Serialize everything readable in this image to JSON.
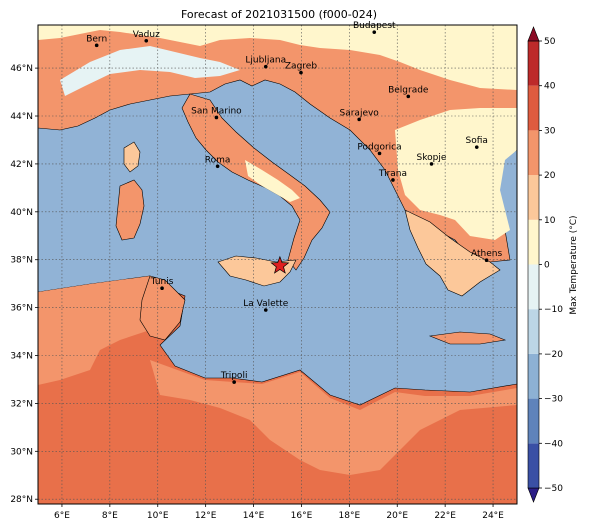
{
  "title": "Forecast of 2021031500 (f000-024)",
  "colorbar": {
    "label": "Max Temperature (°C)",
    "ticks": [
      "50",
      "40",
      "30",
      "20",
      "10",
      "0",
      "−10",
      "−20",
      "−30",
      "−40",
      "−50"
    ],
    "colors": [
      "#2b1d86",
      "#3a50a5",
      "#5f83bb",
      "#8db1d4",
      "#bcd6e6",
      "#e6f3f4",
      "#fff6cc",
      "#fcc89a",
      "#f3956b",
      "#df5b3f",
      "#bd2a2a",
      "#8b0a24"
    ]
  },
  "map": {
    "lon_ticks": [
      "6°E",
      "8°E",
      "10°E",
      "12°E",
      "14°E",
      "16°E",
      "18°E",
      "20°E",
      "22°E",
      "24°E"
    ],
    "lat_ticks": [
      "46°N",
      "44°N",
      "42°N",
      "40°N",
      "38°N",
      "36°N",
      "34°N",
      "32°N",
      "30°N",
      "28°N"
    ],
    "colors": {
      "sea": "#91b3d6",
      "land_warm": "#fcc89a",
      "land_hot": "#f3956b",
      "land_hotter": "#e8704a",
      "land_mild": "#fff6cc",
      "land_cool": "#e6f3f4",
      "marker": "#e02020"
    },
    "cities": [
      {
        "name": "Bern",
        "lon": 7.45,
        "lat": 46.95
      },
      {
        "name": "Vaduz",
        "lon": 9.52,
        "lat": 47.14
      },
      {
        "name": "Budapest",
        "lon": 19.04,
        "lat": 47.5
      },
      {
        "name": "Ljubljana",
        "lon": 14.51,
        "lat": 46.06
      },
      {
        "name": "Zagreb",
        "lon": 15.98,
        "lat": 45.81
      },
      {
        "name": "San Marino",
        "lon": 12.45,
        "lat": 43.94
      },
      {
        "name": "Belgrade",
        "lon": 20.46,
        "lat": 44.82
      },
      {
        "name": "Sarajevo",
        "lon": 18.41,
        "lat": 43.86
      },
      {
        "name": "Sofia",
        "lon": 23.32,
        "lat": 42.7
      },
      {
        "name": "Podgorica",
        "lon": 19.26,
        "lat": 42.44
      },
      {
        "name": "Skopje",
        "lon": 21.43,
        "lat": 42.0
      },
      {
        "name": "Roma",
        "lon": 12.5,
        "lat": 41.9
      },
      {
        "name": "Tirana",
        "lon": 19.82,
        "lat": 41.33
      },
      {
        "name": "Athens",
        "lon": 23.73,
        "lat": 37.98
      },
      {
        "name": "Tunis",
        "lon": 10.18,
        "lat": 36.81
      },
      {
        "name": "La Valette",
        "lon": 14.51,
        "lat": 35.9
      },
      {
        "name": "Tripoli",
        "lon": 13.19,
        "lat": 32.89
      }
    ],
    "star": {
      "lon": 15.1,
      "lat": 37.75
    }
  }
}
